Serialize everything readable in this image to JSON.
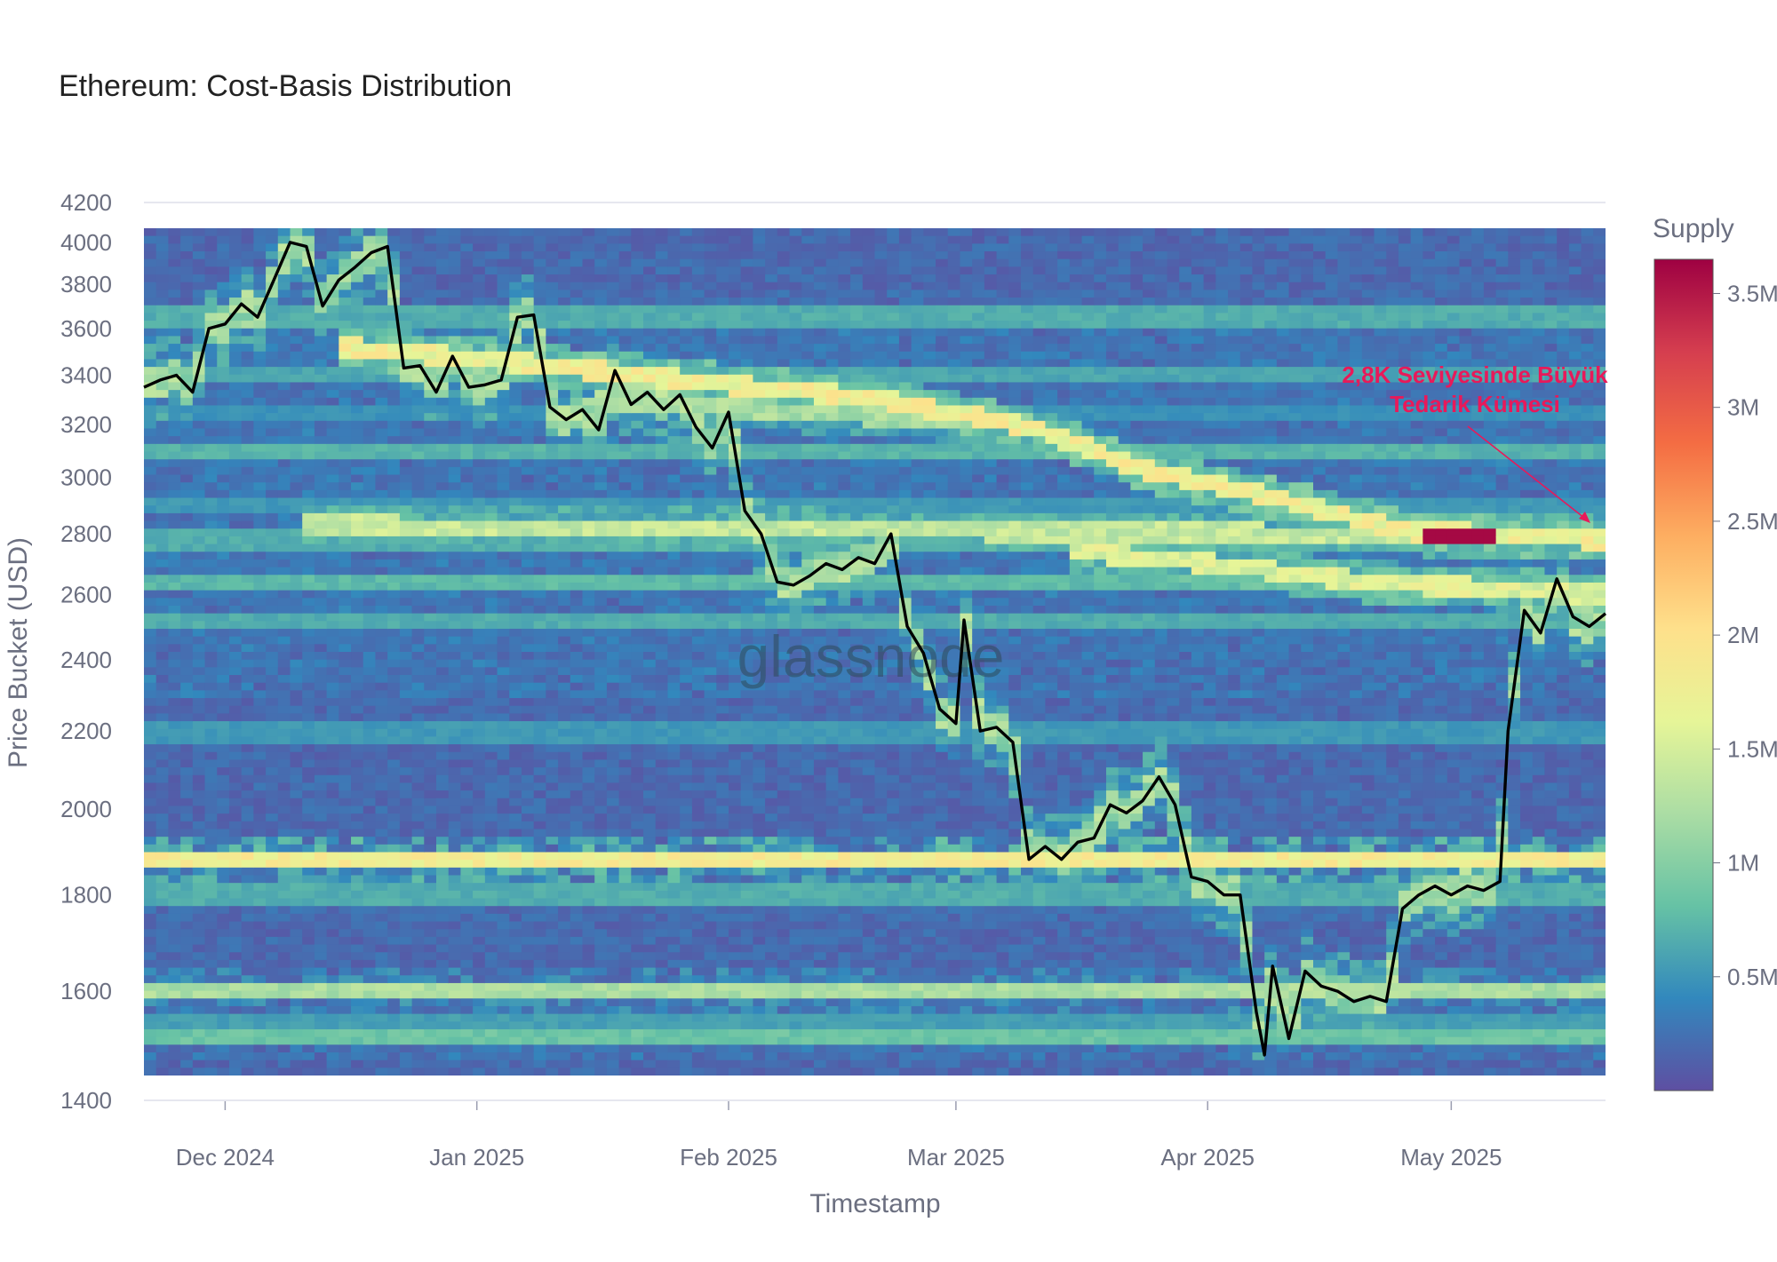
{
  "chart_data": {
    "type": "heatmap",
    "title": "Ethereum: Cost-Basis Distribution",
    "xlabel": "Timestamp",
    "ylabel": "Price Bucket (USD)",
    "y_scale": "log",
    "ylim": [
      1400,
      4200
    ],
    "y_ticks": [
      1400,
      1600,
      1800,
      2000,
      2200,
      2400,
      2600,
      2800,
      3000,
      3200,
      3400,
      3600,
      3800,
      4000,
      4200
    ],
    "x_range": [
      "2024-11-21",
      "2025-05-20"
    ],
    "x_ticks": [
      {
        "date": "2024-12-01",
        "label": "Dec 2024"
      },
      {
        "date": "2025-01-01",
        "label": "Jan 2025"
      },
      {
        "date": "2025-02-01",
        "label": "Feb 2025"
      },
      {
        "date": "2025-03-01",
        "label": "Mar 2025"
      },
      {
        "date": "2025-04-01",
        "label": "Apr 2025"
      },
      {
        "date": "2025-05-01",
        "label": "May 2025"
      }
    ],
    "colorbar": {
      "title": "Supply",
      "min": 0,
      "max": 3650000,
      "ticks": [
        {
          "value": 500000,
          "label": "0.5M"
        },
        {
          "value": 1000000,
          "label": "1M"
        },
        {
          "value": 1500000,
          "label": "1.5M"
        },
        {
          "value": 2000000,
          "label": "2M"
        },
        {
          "value": 2500000,
          "label": "2.5M"
        },
        {
          "value": 3000000,
          "label": "3M"
        },
        {
          "value": 3500000,
          "label": "3.5M"
        }
      ],
      "colors": [
        "#5e4fa2",
        "#3288bd",
        "#66c2a5",
        "#abdda4",
        "#e6f598",
        "#fee08b",
        "#fdae61",
        "#f46d43",
        "#d53e4f",
        "#9e0142"
      ]
    },
    "bands": [
      {
        "price": 1880,
        "supply": 1900000
      },
      {
        "price": 1600,
        "supply": 1300000
      },
      {
        "price": 1510,
        "supply": 900000
      },
      {
        "price": 1800,
        "supply": 700000
      },
      {
        "price": 1540,
        "supply": 600000
      },
      {
        "price": 2200,
        "supply": 550000
      },
      {
        "price": 2520,
        "supply": 700000
      },
      {
        "price": 2640,
        "supply": 800000
      },
      {
        "price": 2780,
        "supply": 700000
      },
      {
        "price": 2900,
        "supply": 550000
      },
      {
        "price": 3100,
        "supply": 750000
      },
      {
        "price": 3400,
        "supply": 650000
      },
      {
        "price": 3660,
        "supply": 700000
      },
      {
        "price": 3250,
        "supply": 500000
      }
    ],
    "trails": [
      {
        "name": "descending high-supply ridge",
        "points": [
          [
            "2024-12-15",
            3520
          ],
          [
            "2025-01-10",
            3440
          ],
          [
            "2025-02-01",
            3360
          ],
          [
            "2025-02-20",
            3300
          ],
          [
            "2025-03-10",
            3190
          ],
          [
            "2025-03-25",
            3020
          ],
          [
            "2025-04-10",
            2920
          ],
          [
            "2025-04-25",
            2810
          ],
          [
            "2025-05-20",
            2780
          ]
        ],
        "supply": 1900000
      },
      {
        "name": "2.6K cluster",
        "points": [
          [
            "2025-03-15",
            2740
          ],
          [
            "2025-04-01",
            2700
          ],
          [
            "2025-04-20",
            2640
          ],
          [
            "2025-05-20",
            2600
          ]
        ],
        "supply": 1700000
      },
      {
        "name": "2.8K flat",
        "points": [
          [
            "2024-12-10",
            2830
          ],
          [
            "2025-05-20",
            2790
          ]
        ],
        "supply": 1500000
      },
      {
        "name": "Feb 3.2K line",
        "points": [
          [
            "2025-01-15",
            3300
          ],
          [
            "2025-02-15",
            3240
          ],
          [
            "2025-03-10",
            3200
          ]
        ],
        "supply": 1300000
      }
    ],
    "hotspot": {
      "date": "2025-05-02",
      "price": 2790,
      "supply": 3600000
    },
    "price_line": {
      "name": "ETH price",
      "color": "#000000",
      "dates": [
        "2024-11-21",
        "2024-11-23",
        "2024-11-25",
        "2024-11-27",
        "2024-11-29",
        "2024-12-01",
        "2024-12-03",
        "2024-12-05",
        "2024-12-07",
        "2024-12-09",
        "2024-12-11",
        "2024-12-13",
        "2024-12-15",
        "2024-12-17",
        "2024-12-19",
        "2024-12-21",
        "2024-12-23",
        "2024-12-25",
        "2024-12-27",
        "2024-12-29",
        "2024-12-31",
        "2025-01-02",
        "2025-01-04",
        "2025-01-06",
        "2025-01-08",
        "2025-01-10",
        "2025-01-12",
        "2025-01-14",
        "2025-01-16",
        "2025-01-18",
        "2025-01-20",
        "2025-01-22",
        "2025-01-24",
        "2025-01-26",
        "2025-01-28",
        "2025-01-30",
        "2025-02-01",
        "2025-02-03",
        "2025-02-05",
        "2025-02-07",
        "2025-02-09",
        "2025-02-11",
        "2025-02-13",
        "2025-02-15",
        "2025-02-17",
        "2025-02-19",
        "2025-02-21",
        "2025-02-23",
        "2025-02-25",
        "2025-02-27",
        "2025-03-01",
        "2025-03-02",
        "2025-03-04",
        "2025-03-06",
        "2025-03-08",
        "2025-03-10",
        "2025-03-12",
        "2025-03-14",
        "2025-03-16",
        "2025-03-18",
        "2025-03-20",
        "2025-03-22",
        "2025-03-24",
        "2025-03-26",
        "2025-03-28",
        "2025-03-30",
        "2025-04-01",
        "2025-04-03",
        "2025-04-05",
        "2025-04-07",
        "2025-04-08",
        "2025-04-09",
        "2025-04-11",
        "2025-04-13",
        "2025-04-15",
        "2025-04-17",
        "2025-04-19",
        "2025-04-21",
        "2025-04-23",
        "2025-04-25",
        "2025-04-27",
        "2025-04-29",
        "2025-05-01",
        "2025-05-03",
        "2025-05-05",
        "2025-05-07",
        "2025-05-08",
        "2025-05-10",
        "2025-05-12",
        "2025-05-14",
        "2025-05-16",
        "2025-05-18",
        "2025-05-20"
      ],
      "values": [
        3350,
        3380,
        3400,
        3330,
        3600,
        3620,
        3710,
        3650,
        3820,
        4000,
        3980,
        3700,
        3820,
        3880,
        3950,
        3980,
        3430,
        3440,
        3330,
        3480,
        3350,
        3360,
        3380,
        3650,
        3660,
        3270,
        3220,
        3260,
        3180,
        3420,
        3280,
        3330,
        3260,
        3320,
        3190,
        3110,
        3250,
        2880,
        2800,
        2640,
        2630,
        2660,
        2700,
        2680,
        2720,
        2700,
        2800,
        2500,
        2420,
        2260,
        2220,
        2520,
        2200,
        2210,
        2170,
        1880,
        1910,
        1880,
        1920,
        1930,
        2010,
        1990,
        2020,
        2080,
        2010,
        1840,
        1830,
        1800,
        1800,
        1560,
        1480,
        1650,
        1510,
        1640,
        1610,
        1600,
        1580,
        1590,
        1580,
        1770,
        1800,
        1820,
        1800,
        1820,
        1810,
        1830,
        2200,
        2550,
        2480,
        2650,
        2530,
        2500,
        2540
      ]
    },
    "annotation": {
      "lines": [
        "2,8K Seviyesinde Büyük",
        "Tedarik Kümesi"
      ],
      "points_to": {
        "date": "2025-05-20",
        "price": 2790
      },
      "color": "#e8195a"
    },
    "watermark": "glassnode"
  }
}
